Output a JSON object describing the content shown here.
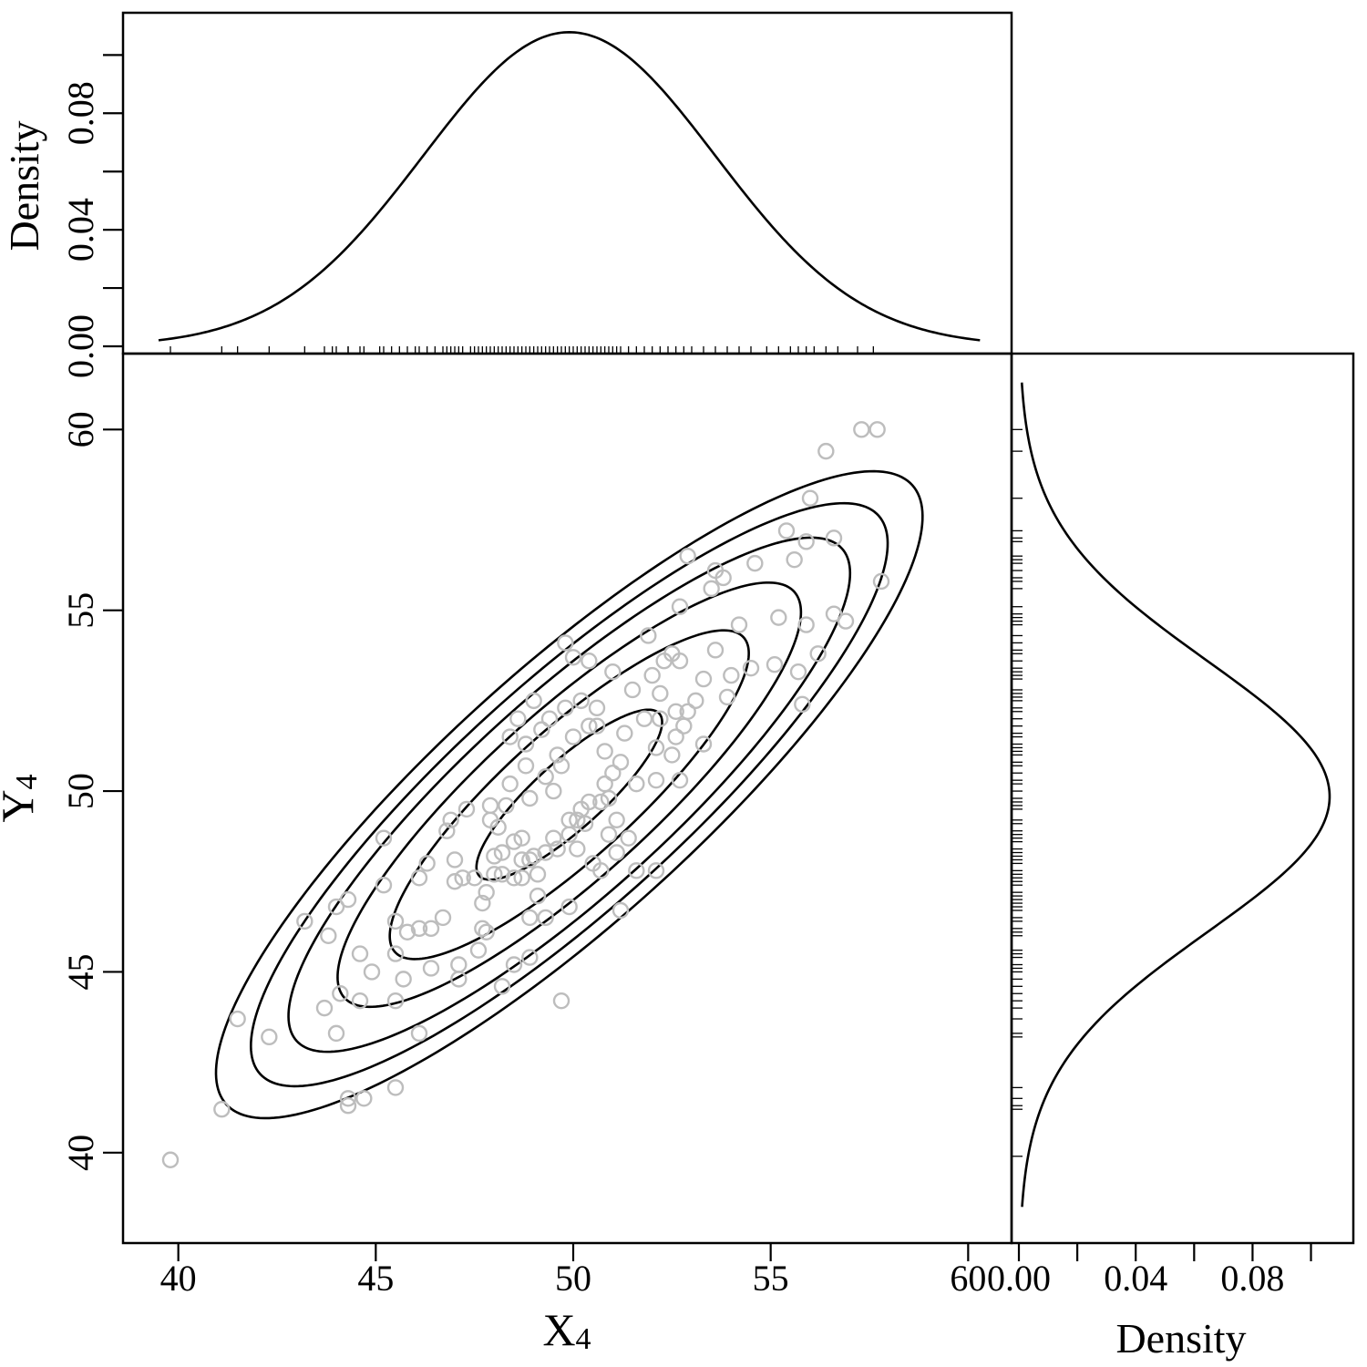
{
  "chart_data": [
    {
      "panel": "top-marginal",
      "type": "line",
      "title": "",
      "ylabel": "Density",
      "xlim": [
        38.6,
        61.1
      ],
      "ylim": [
        -0.0025,
        0.1145
      ],
      "yticks": [
        0.0,
        0.02,
        0.04,
        0.06,
        0.08,
        0.1
      ],
      "ytick_labels": [
        "0.00",
        "",
        "0.04",
        "",
        "0.08",
        ""
      ],
      "density": {
        "mean": 49.9,
        "sd": 3.7,
        "x_range": [
          39.5,
          60.3
        ]
      },
      "rug_x": [
        39.8,
        41.1,
        41.5,
        42.3,
        43.2,
        43.7,
        43.9,
        44.0,
        44.3,
        44.3,
        44.6,
        44.7,
        45.1,
        45.2,
        45.4,
        45.6,
        45.8,
        46.0,
        46.1,
        46.3,
        46.5,
        46.7,
        46.8,
        46.9,
        47.0,
        47.1,
        47.2,
        47.4,
        47.5,
        47.6,
        47.7,
        47.8,
        47.9,
        48.0,
        48.1,
        48.2,
        48.3,
        48.4,
        48.5,
        48.6,
        48.7,
        48.8,
        48.9,
        49.0,
        49.1,
        49.2,
        49.3,
        49.4,
        49.5,
        49.6,
        49.7,
        49.8,
        49.9,
        50.0,
        50.1,
        50.2,
        50.3,
        50.4,
        50.5,
        50.6,
        50.7,
        50.8,
        50.9,
        51.0,
        51.1,
        51.2,
        51.4,
        51.6,
        51.8,
        52.0,
        52.2,
        52.4,
        52.6,
        52.8,
        53.0,
        53.3,
        53.6,
        53.9,
        54.2,
        54.5,
        54.9,
        55.2,
        55.5,
        55.7,
        55.9,
        56.1,
        56.4,
        56.7,
        57.2,
        57.6
      ],
      "xtick_labels_shown": false
    },
    {
      "panel": "scatter",
      "type": "scatter",
      "title": "",
      "xlabel_main": "X",
      "xlabel_sub": "4",
      "ylabel_main": "Y",
      "ylabel_sub": "4",
      "xlim": [
        38.6,
        61.1
      ],
      "ylim": [
        37.5,
        62.1
      ],
      "xticks": [
        40,
        45,
        50,
        55,
        60
      ],
      "xtick_labels": [
        "40",
        "45",
        "50",
        "55",
        "60"
      ],
      "yticks": [
        40,
        45,
        50,
        55,
        60
      ],
      "ytick_labels": [
        "40",
        "45",
        "50",
        "55",
        "60"
      ],
      "contours": {
        "center": [
          49.9,
          49.9
        ],
        "major_axis_angle_deg": 45,
        "semi_axes_data_units": [
          [
            3.2,
            0.9
          ],
          [
            6.2,
            1.7
          ],
          [
            8.0,
            2.2
          ],
          [
            9.7,
            2.65
          ],
          [
            11.0,
            3.0
          ],
          [
            12.2,
            3.35
          ]
        ]
      },
      "points": [
        [
          39.8,
          39.8
        ],
        [
          41.1,
          41.2
        ],
        [
          41.5,
          43.7
        ],
        [
          42.3,
          43.2
        ],
        [
          43.2,
          46.4
        ],
        [
          43.7,
          44.0
        ],
        [
          43.8,
          46.0
        ],
        [
          44.0,
          43.3
        ],
        [
          44.0,
          46.8
        ],
        [
          44.1,
          44.4
        ],
        [
          44.3,
          41.5
        ],
        [
          44.3,
          41.3
        ],
        [
          44.3,
          47.0
        ],
        [
          44.6,
          45.5
        ],
        [
          44.6,
          44.2
        ],
        [
          44.7,
          41.5
        ],
        [
          44.9,
          45.0
        ],
        [
          45.2,
          48.7
        ],
        [
          45.2,
          47.4
        ],
        [
          45.5,
          46.4
        ],
        [
          45.5,
          45.5
        ],
        [
          45.5,
          44.2
        ],
        [
          45.5,
          41.8
        ],
        [
          45.7,
          44.8
        ],
        [
          45.8,
          46.1
        ],
        [
          46.1,
          46.2
        ],
        [
          46.1,
          47.6
        ],
        [
          46.1,
          43.3
        ],
        [
          46.3,
          48.0
        ],
        [
          46.4,
          46.2
        ],
        [
          46.4,
          45.1
        ],
        [
          46.7,
          46.5
        ],
        [
          46.8,
          48.9
        ],
        [
          46.9,
          49.2
        ],
        [
          47.0,
          47.5
        ],
        [
          47.0,
          48.1
        ],
        [
          47.1,
          45.2
        ],
        [
          47.1,
          44.8
        ],
        [
          47.2,
          47.6
        ],
        [
          47.3,
          49.5
        ],
        [
          47.5,
          47.6
        ],
        [
          47.6,
          45.6
        ],
        [
          47.7,
          46.2
        ],
        [
          47.7,
          46.9
        ],
        [
          47.8,
          47.2
        ],
        [
          47.8,
          46.1
        ],
        [
          47.9,
          49.6
        ],
        [
          47.9,
          49.2
        ],
        [
          48.0,
          47.7
        ],
        [
          48.0,
          48.2
        ],
        [
          48.1,
          49.0
        ],
        [
          48.2,
          48.3
        ],
        [
          48.2,
          47.7
        ],
        [
          48.2,
          44.6
        ],
        [
          48.3,
          49.6
        ],
        [
          48.4,
          51.5
        ],
        [
          48.4,
          50.2
        ],
        [
          48.5,
          48.6
        ],
        [
          48.5,
          47.6
        ],
        [
          48.5,
          45.2
        ],
        [
          48.6,
          52.0
        ],
        [
          48.7,
          48.7
        ],
        [
          48.7,
          48.1
        ],
        [
          48.7,
          47.6
        ],
        [
          48.8,
          51.3
        ],
        [
          48.8,
          50.7
        ],
        [
          48.9,
          49.8
        ],
        [
          48.9,
          48.1
        ],
        [
          48.9,
          46.5
        ],
        [
          48.9,
          45.4
        ],
        [
          49.0,
          52.5
        ],
        [
          49.0,
          48.2
        ],
        [
          49.1,
          47.7
        ],
        [
          49.1,
          47.1
        ],
        [
          49.2,
          51.7
        ],
        [
          49.3,
          50.4
        ],
        [
          49.3,
          48.3
        ],
        [
          49.3,
          46.5
        ],
        [
          49.4,
          52.0
        ],
        [
          49.5,
          50.0
        ],
        [
          49.5,
          48.7
        ],
        [
          49.6,
          51.0
        ],
        [
          49.6,
          48.4
        ],
        [
          49.7,
          50.7
        ],
        [
          49.7,
          44.2
        ],
        [
          49.8,
          54.1
        ],
        [
          49.8,
          52.3
        ],
        [
          49.9,
          49.2
        ],
        [
          49.9,
          48.8
        ],
        [
          49.9,
          46.8
        ],
        [
          50.0,
          53.7
        ],
        [
          50.0,
          51.5
        ],
        [
          50.1,
          49.2
        ],
        [
          50.1,
          48.4
        ],
        [
          50.2,
          52.5
        ],
        [
          50.2,
          49.5
        ],
        [
          50.3,
          49.1
        ],
        [
          50.4,
          53.6
        ],
        [
          50.4,
          51.8
        ],
        [
          50.4,
          49.7
        ],
        [
          50.5,
          48.0
        ],
        [
          50.6,
          52.3
        ],
        [
          50.6,
          51.8
        ],
        [
          50.7,
          49.7
        ],
        [
          50.7,
          47.8
        ],
        [
          50.8,
          51.1
        ],
        [
          50.8,
          50.2
        ],
        [
          50.9,
          49.8
        ],
        [
          50.9,
          48.8
        ],
        [
          51.0,
          53.3
        ],
        [
          51.0,
          50.5
        ],
        [
          51.1,
          49.2
        ],
        [
          51.1,
          48.3
        ],
        [
          51.2,
          50.8
        ],
        [
          51.2,
          46.7
        ],
        [
          51.3,
          51.6
        ],
        [
          51.4,
          48.7
        ],
        [
          51.5,
          52.8
        ],
        [
          51.6,
          50.2
        ],
        [
          51.6,
          47.8
        ],
        [
          51.8,
          52.0
        ],
        [
          51.9,
          54.3
        ],
        [
          52.0,
          53.2
        ],
        [
          52.1,
          51.2
        ],
        [
          52.1,
          50.3
        ],
        [
          52.1,
          47.8
        ],
        [
          52.2,
          52.0
        ],
        [
          52.2,
          52.7
        ],
        [
          52.3,
          53.6
        ],
        [
          52.5,
          53.8
        ],
        [
          52.5,
          51.0
        ],
        [
          52.6,
          51.5
        ],
        [
          52.6,
          52.2
        ],
        [
          52.7,
          55.1
        ],
        [
          52.7,
          53.6
        ],
        [
          52.7,
          50.3
        ],
        [
          52.8,
          51.8
        ],
        [
          52.9,
          56.5
        ],
        [
          52.9,
          52.2
        ],
        [
          53.1,
          52.5
        ],
        [
          53.3,
          51.3
        ],
        [
          53.3,
          53.1
        ],
        [
          53.5,
          55.6
        ],
        [
          53.6,
          53.9
        ],
        [
          53.6,
          56.1
        ],
        [
          53.8,
          55.9
        ],
        [
          53.9,
          52.6
        ],
        [
          54.0,
          53.2
        ],
        [
          54.2,
          54.6
        ],
        [
          54.5,
          53.4
        ],
        [
          54.6,
          56.3
        ],
        [
          55.1,
          53.5
        ],
        [
          55.2,
          54.8
        ],
        [
          55.4,
          57.2
        ],
        [
          55.6,
          56.4
        ],
        [
          55.7,
          53.3
        ],
        [
          55.8,
          52.4
        ],
        [
          55.9,
          56.9
        ],
        [
          55.9,
          54.6
        ],
        [
          56.0,
          58.1
        ],
        [
          56.2,
          53.8
        ],
        [
          56.4,
          59.4
        ],
        [
          56.6,
          57.0
        ],
        [
          56.6,
          54.9
        ],
        [
          56.9,
          54.7
        ],
        [
          57.3,
          60.0
        ],
        [
          57.7,
          60.0
        ],
        [
          57.8,
          55.8
        ]
      ]
    },
    {
      "panel": "right-marginal",
      "type": "line",
      "title": "",
      "xlabel": "Density",
      "xlim": [
        -0.0025,
        0.1145
      ],
      "xticks": [
        0.0,
        0.02,
        0.04,
        0.06,
        0.08,
        0.1
      ],
      "xtick_labels": [
        "0.00",
        "",
        "0.04",
        "",
        "0.08",
        ""
      ],
      "density": {
        "mean": 49.85,
        "sd": 3.75,
        "y_range": [
          38.5,
          61.3
        ]
      },
      "rug_y": [
        39.9,
        41.2,
        41.3,
        41.5,
        41.8,
        43.2,
        43.3,
        43.7,
        44.0,
        44.2,
        44.4,
        44.6,
        44.8,
        45.0,
        45.1,
        45.2,
        45.4,
        45.5,
        45.6,
        46.0,
        46.1,
        46.2,
        46.4,
        46.5,
        46.7,
        46.8,
        46.9,
        47.0,
        47.1,
        47.2,
        47.4,
        47.5,
        47.6,
        47.7,
        47.8,
        48.0,
        48.1,
        48.2,
        48.3,
        48.4,
        48.6,
        48.7,
        48.8,
        48.9,
        49.1,
        49.2,
        49.5,
        49.6,
        49.7,
        49.8,
        50.0,
        50.2,
        50.3,
        50.5,
        50.7,
        50.8,
        51.0,
        51.1,
        51.2,
        51.3,
        51.5,
        51.6,
        51.8,
        52.0,
        52.2,
        52.3,
        52.5,
        52.6,
        52.7,
        52.8,
        53.1,
        53.2,
        53.3,
        53.4,
        53.6,
        53.8,
        53.9,
        54.1,
        54.3,
        54.6,
        54.7,
        54.8,
        54.9,
        55.1,
        55.6,
        55.8,
        55.9,
        56.1,
        56.3,
        56.4,
        56.5,
        56.9,
        57.0,
        57.2,
        58.1,
        59.4,
        60.0
      ]
    }
  ]
}
